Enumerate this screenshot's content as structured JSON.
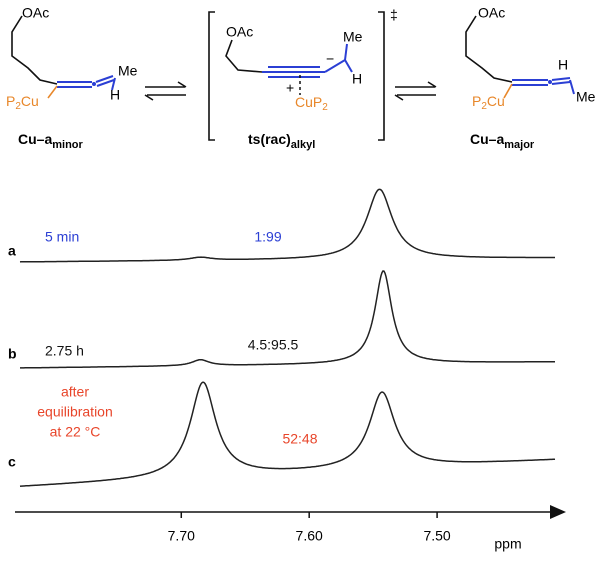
{
  "scheme": {
    "left": {
      "oac": "OAc",
      "me": "Me",
      "h": "H",
      "cu": {
        "p": "P",
        "sub": "2",
        "cu": "Cu"
      },
      "label": {
        "text": "Cu–a",
        "sub": "minor"
      }
    },
    "center": {
      "oac": "OAc",
      "me": "Me",
      "h": "H",
      "minus": "−",
      "plus": "+",
      "cu": {
        "cu": "CuP",
        "sub": "2"
      },
      "dagger": "‡",
      "label": {
        "text": "ts(rac)",
        "sub": "alkyl"
      }
    },
    "right": {
      "oac": "OAc",
      "me": "Me",
      "h": "H",
      "cu": {
        "p": "P",
        "sub": "2",
        "cu": "Cu"
      },
      "label": {
        "text": "Cu–a",
        "sub": "major"
      }
    }
  },
  "chart_data": {
    "type": "nmr",
    "xlim": [
      7.83,
      7.4
    ],
    "xticks": [
      {
        "value": 7.7,
        "label": "7.70"
      },
      {
        "value": 7.6,
        "label": "7.60"
      },
      {
        "value": 7.5,
        "label": "7.50"
      }
    ],
    "xlabel": "ppm",
    "series": [
      {
        "name": "a",
        "note": [
          "5 min"
        ],
        "ratio": "1:99",
        "color": "#2b3fd4",
        "peaks": [
          {
            "ppm": 7.545,
            "height": 70,
            "width": 0.012
          },
          {
            "ppm": 7.685,
            "height": 3,
            "width": 0.01
          }
        ]
      },
      {
        "name": "b",
        "note": [
          "2.75 h"
        ],
        "ratio": "4.5:95.5",
        "color": "#111111",
        "peaks": [
          {
            "ppm": 7.542,
            "height": 93,
            "width": 0.008
          },
          {
            "ppm": 7.685,
            "height": 6,
            "width": 0.008
          }
        ]
      },
      {
        "name": "c",
        "note": [
          "after",
          "equilibration",
          "at 22 °C"
        ],
        "ratio": "52:48",
        "color": "#e8452a",
        "peaks": [
          {
            "ppm": 7.683,
            "height": 95,
            "width": 0.012
          },
          {
            "ppm": 7.543,
            "height": 76,
            "width": 0.012
          }
        ]
      }
    ]
  }
}
